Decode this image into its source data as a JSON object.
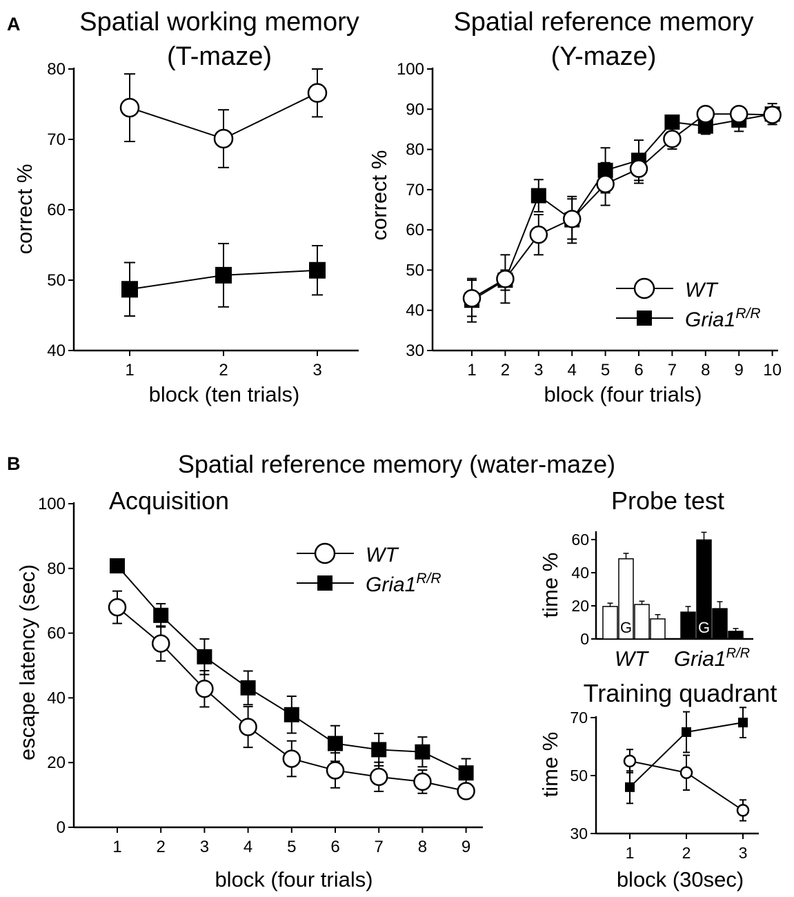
{
  "panels": {
    "A": "A",
    "B": "B"
  },
  "legend": {
    "wt": "WT",
    "gria_base": "Gria1",
    "gria_sup": "R/R"
  },
  "section_b_title": "Spatial reference memory (water-maze)",
  "chart_data": [
    {
      "id": "tmaze",
      "type": "line",
      "title_line1": "Spatial working memory",
      "title_line2": "(T-maze)",
      "xlabel": "block (ten trials)",
      "ylabel": "correct %",
      "ylim": [
        40,
        80
      ],
      "yticks": [
        40,
        50,
        60,
        70,
        80
      ],
      "x": [
        1,
        2,
        3
      ],
      "series": [
        {
          "name": "WT",
          "marker": "open-circle",
          "values": [
            74.5,
            70.1,
            76.6
          ],
          "errors": [
            4.8,
            4.1,
            3.4
          ]
        },
        {
          "name": "Gria1R/R",
          "marker": "filled-square",
          "values": [
            48.7,
            50.7,
            51.4
          ],
          "errors": [
            3.8,
            4.5,
            3.5
          ]
        }
      ]
    },
    {
      "id": "ymaze",
      "type": "line",
      "title_line1": "Spatial reference memory",
      "title_line2": "(Y-maze)",
      "xlabel": "block (four trials)",
      "ylabel": "correct %",
      "ylim": [
        30,
        100
      ],
      "yticks": [
        30,
        40,
        50,
        60,
        70,
        80,
        90,
        100
      ],
      "x": [
        1,
        2,
        3,
        4,
        5,
        6,
        7,
        8,
        9,
        10
      ],
      "series": [
        {
          "name": "WT",
          "marker": "open-circle",
          "values": [
            43,
            47.8,
            58.8,
            62.7,
            71.4,
            75.2,
            82.6,
            88.8,
            88.8,
            88.6
          ],
          "errors": [
            4.5,
            6.0,
            5.0,
            5.0,
            5.3,
            3.6,
            2.5,
            1.7,
            1.6,
            1.8
          ]
        },
        {
          "name": "Gria1R/R",
          "marker": "filled-square",
          "values": [
            42.5,
            47.5,
            68.5,
            62.5,
            74.8,
            77.3,
            86.8,
            85.8,
            87.3,
            88.8
          ],
          "errors": [
            5.4,
            2.5,
            4.0,
            5.8,
            5.6,
            5.0,
            1.6,
            2.0,
            2.8,
            2.6
          ]
        }
      ]
    },
    {
      "id": "acquisition",
      "type": "line",
      "title": "Acquisition",
      "xlabel": "block (four trials)",
      "ylabel": "escape latency (sec)",
      "ylim": [
        0,
        100
      ],
      "yticks": [
        0,
        20,
        40,
        60,
        80,
        100
      ],
      "x": [
        1,
        2,
        3,
        4,
        5,
        6,
        7,
        8,
        9
      ],
      "series": [
        {
          "name": "WT",
          "marker": "open-circle",
          "values": [
            68,
            56.8,
            42.8,
            31,
            21.2,
            17.6,
            15.6,
            14.1,
            11.2
          ],
          "errors": [
            5,
            5.4,
            5.6,
            6.3,
            5.5,
            5.4,
            4.5,
            3.6,
            1.2
          ]
        },
        {
          "name": "Gria1R/R",
          "marker": "filled-square",
          "values": [
            80.8,
            65.5,
            52.7,
            43.1,
            34.8,
            25.9,
            24,
            23.3,
            16.8
          ],
          "errors": [
            0,
            3.6,
            5.5,
            5.2,
            5.7,
            5.5,
            5.0,
            4.6,
            4.4
          ]
        }
      ]
    },
    {
      "id": "probe",
      "type": "bar",
      "title": "Probe test",
      "ylabel": "time %",
      "ylim": [
        0,
        65
      ],
      "yticks": [
        0,
        20,
        40,
        60
      ],
      "groups": [
        "WT",
        "Gria1R/R"
      ],
      "goal_label": "G",
      "series": [
        {
          "name": "WT",
          "fill": "open",
          "values": [
            19.6,
            48.4,
            20.8,
            12.1
          ],
          "errors": [
            2.0,
            3.3,
            2.0,
            2.6
          ]
        },
        {
          "name": "Gria1R/R",
          "fill": "filled",
          "values": [
            16.2,
            59.8,
            18.3,
            4.6
          ],
          "errors": [
            3.4,
            4.6,
            4.2,
            1.7
          ]
        }
      ]
    },
    {
      "id": "training",
      "type": "line",
      "title": "Training quadrant",
      "xlabel": "block (30sec)",
      "ylabel": "time %",
      "ylim": [
        30,
        70
      ],
      "yticks": [
        30,
        50,
        70
      ],
      "x": [
        1,
        2,
        3
      ],
      "series": [
        {
          "name": "WT",
          "marker": "open-circle",
          "values": [
            55,
            51,
            38
          ],
          "errors": [
            4,
            6,
            3.6
          ]
        },
        {
          "name": "Gria1R/R",
          "marker": "filled-square",
          "values": [
            46,
            65,
            68.3
          ],
          "errors": [
            5.6,
            7,
            5.2
          ]
        }
      ]
    }
  ]
}
